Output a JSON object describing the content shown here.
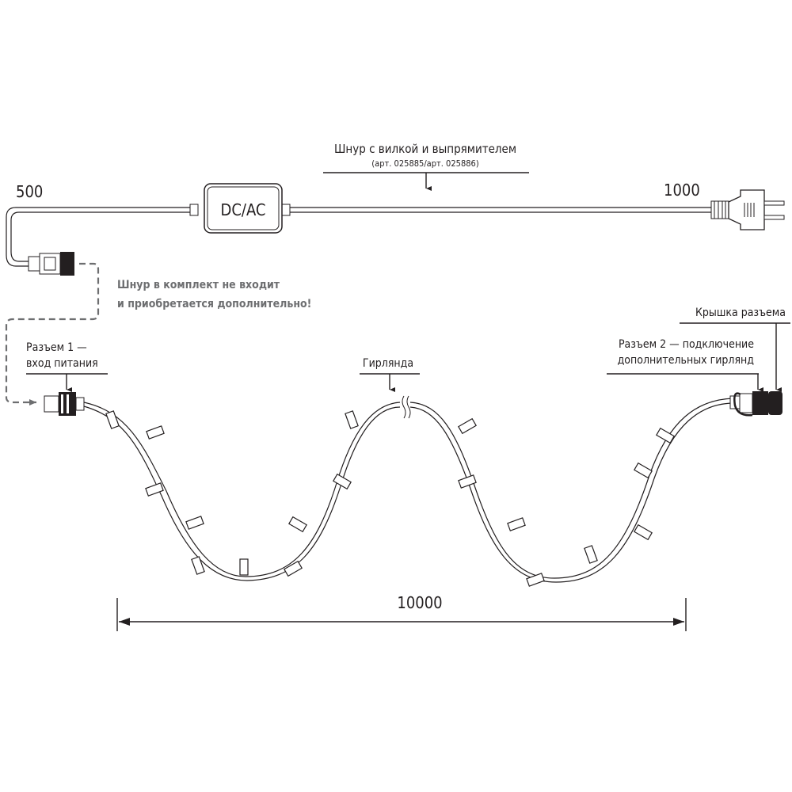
{
  "cord": {
    "title": "Шнур с вилкой и выпрямителем",
    "article": "(арт. 025885/арт. 025886)",
    "converter_label": "DC/AC",
    "length_left": "500",
    "length_right": "1000"
  },
  "note": {
    "line1": "Шнур в комплект не входит",
    "line2": "и приобретается дополнительно!"
  },
  "connector1": {
    "line1": "Разъем 1 —",
    "line2": "вход питания"
  },
  "garland": {
    "label": "Гирлянда",
    "length": "10000"
  },
  "connector2": {
    "line1": "Разъем 2 — подключение",
    "line2": "дополнительных гирлянд"
  },
  "cap": {
    "label": "Крышка разъема"
  },
  "colors": {
    "line": "#231f20",
    "note": "#6d6e70"
  }
}
